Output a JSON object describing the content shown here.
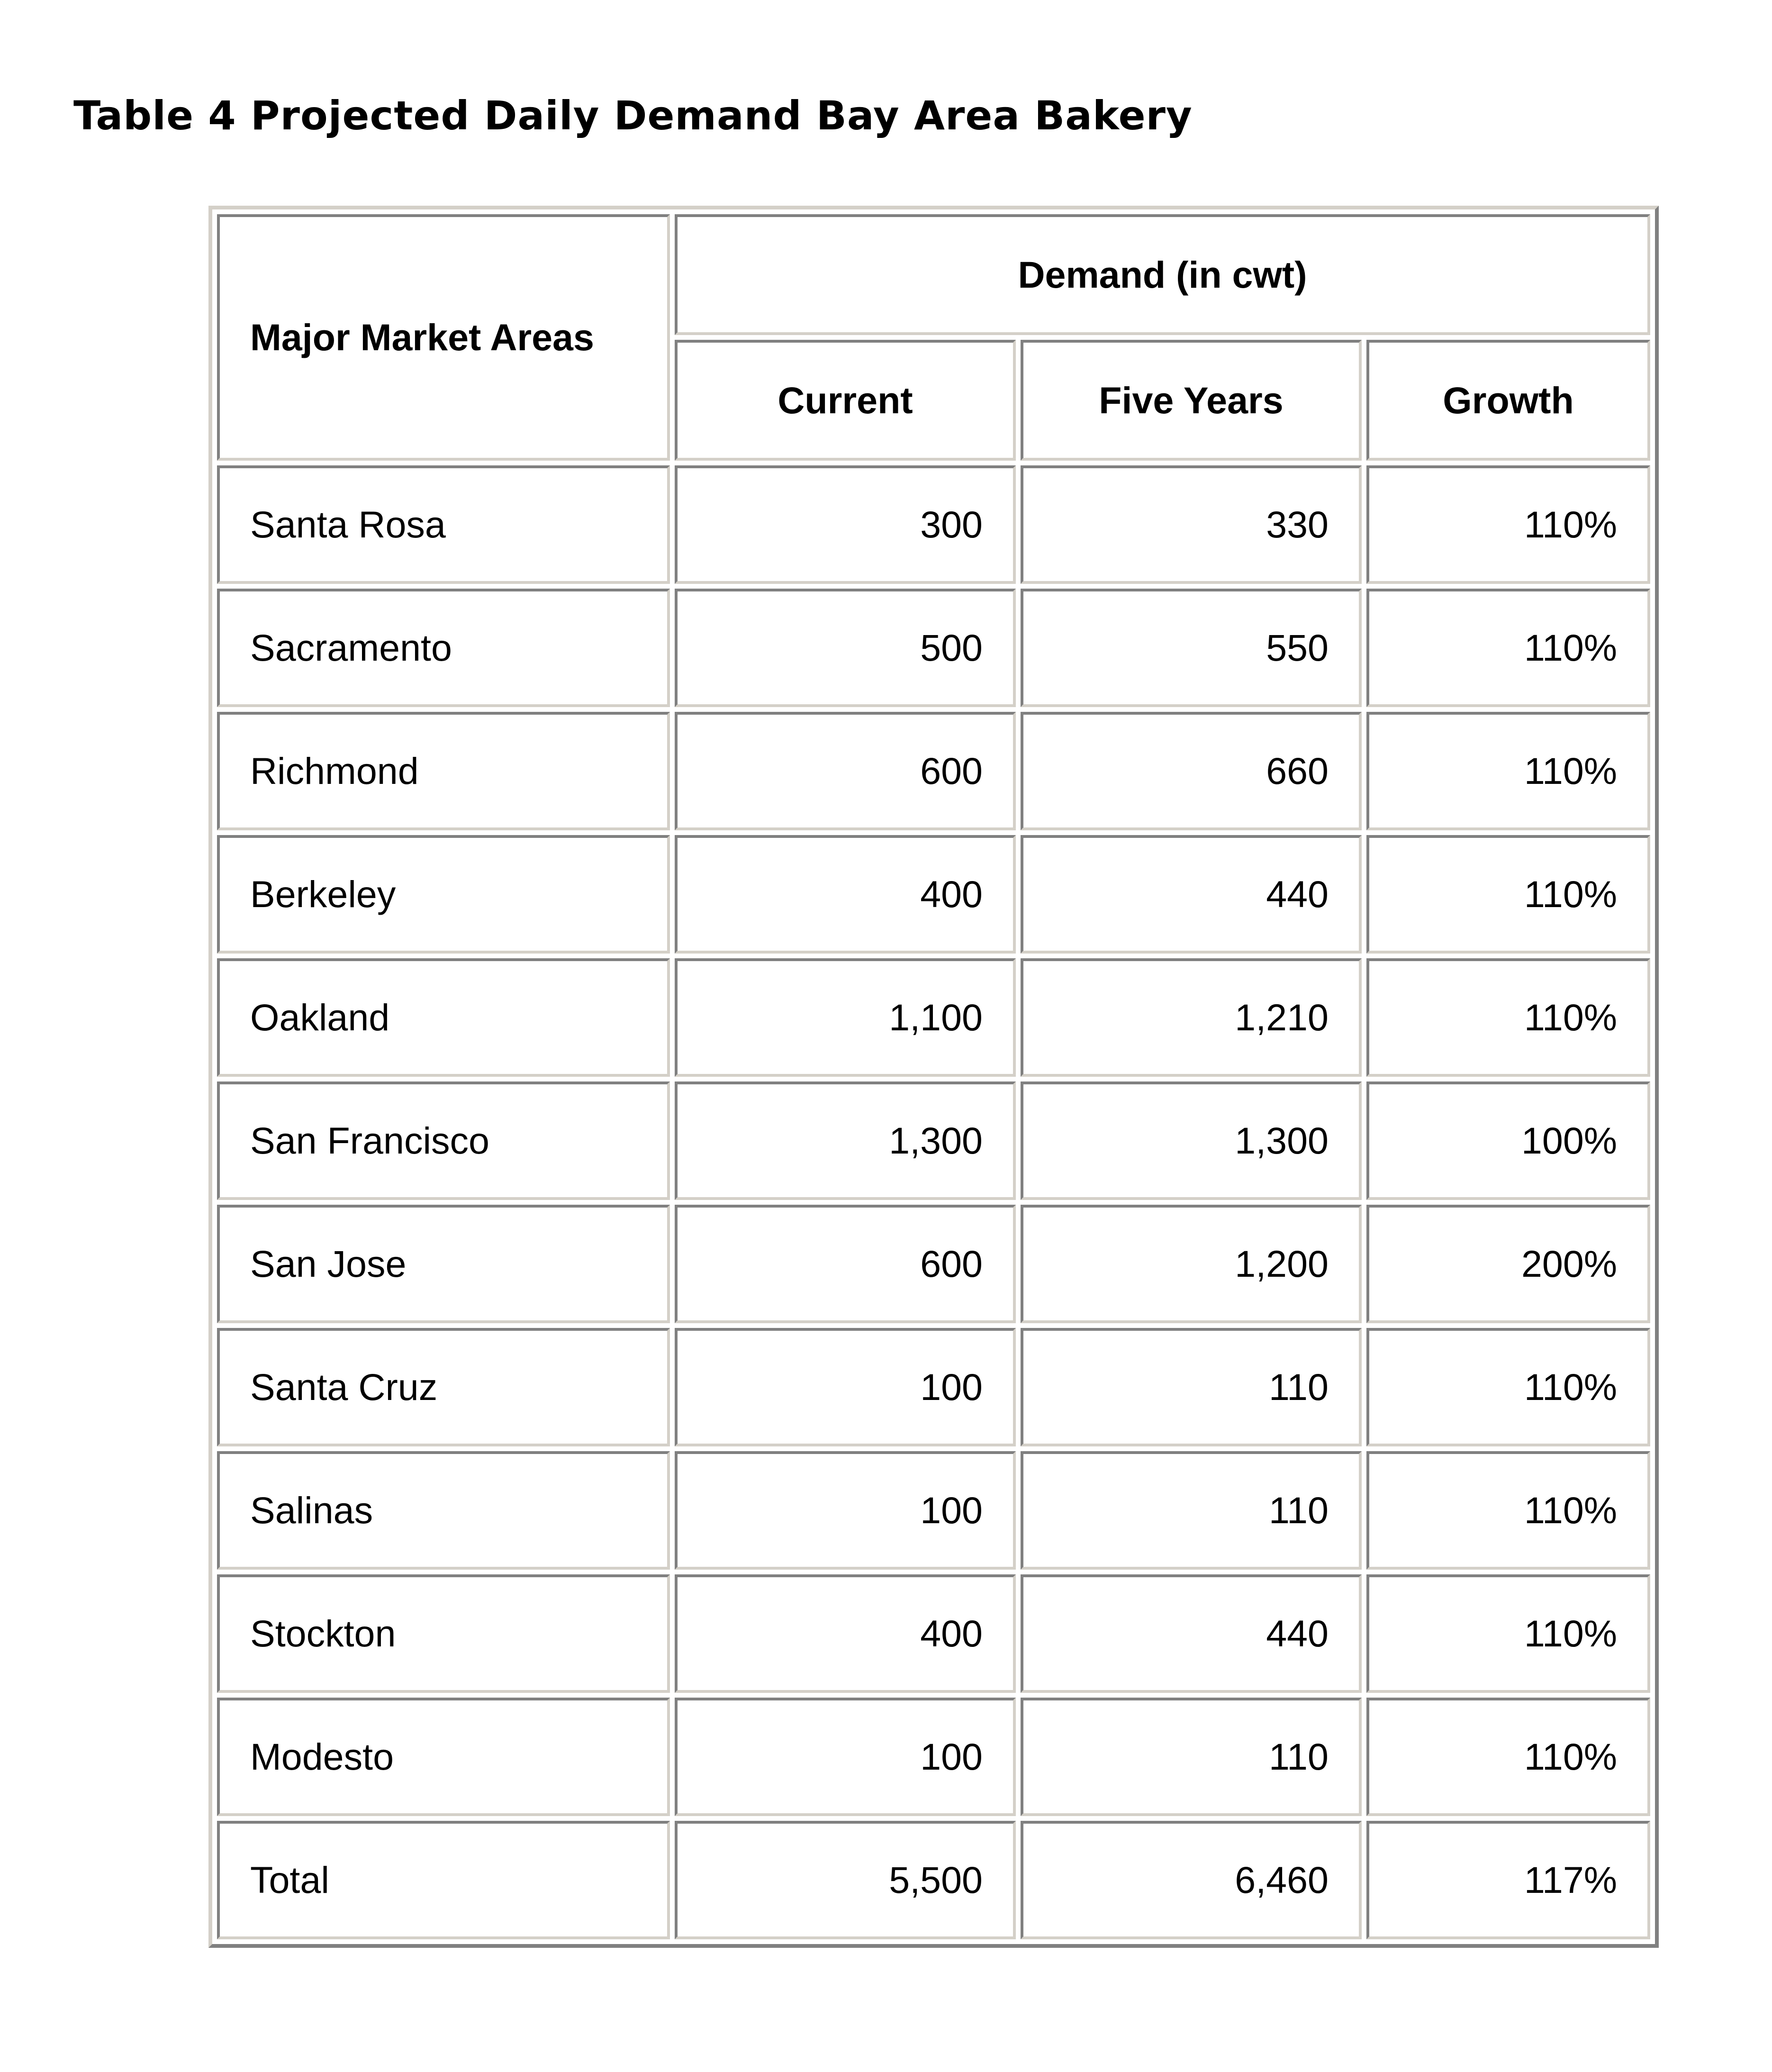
{
  "title": "Table 4 Projected Daily Demand Bay Area Bakery",
  "table": {
    "row_header": "Major Market Areas",
    "group_header": "Demand (in cwt)",
    "columns": [
      "Current",
      "Five Years",
      "Growth"
    ],
    "rows": [
      {
        "area": "Santa Rosa",
        "current": "300",
        "five_years": "330",
        "growth": "110%"
      },
      {
        "area": "Sacramento",
        "current": "500",
        "five_years": "550",
        "growth": "110%"
      },
      {
        "area": "Richmond",
        "current": "600",
        "five_years": "660",
        "growth": "110%"
      },
      {
        "area": "Berkeley",
        "current": "400",
        "five_years": "440",
        "growth": "110%"
      },
      {
        "area": "Oakland",
        "current": "1,100",
        "five_years": "1,210",
        "growth": "110%"
      },
      {
        "area": "San Francisco",
        "current": "1,300",
        "five_years": "1,300",
        "growth": "100%"
      },
      {
        "area": "San Jose",
        "current": "600",
        "five_years": "1,200",
        "growth": "200%"
      },
      {
        "area": "Santa Cruz",
        "current": "100",
        "five_years": "110",
        "growth": "110%"
      },
      {
        "area": "Salinas",
        "current": "100",
        "five_years": "110",
        "growth": "110%"
      },
      {
        "area": "Stockton",
        "current": "400",
        "five_years": "440",
        "growth": "110%"
      },
      {
        "area": "Modesto",
        "current": "100",
        "five_years": "110",
        "growth": "110%"
      },
      {
        "area": "Total",
        "current": "5,500",
        "five_years": "6,460",
        "growth": "117%"
      }
    ]
  }
}
